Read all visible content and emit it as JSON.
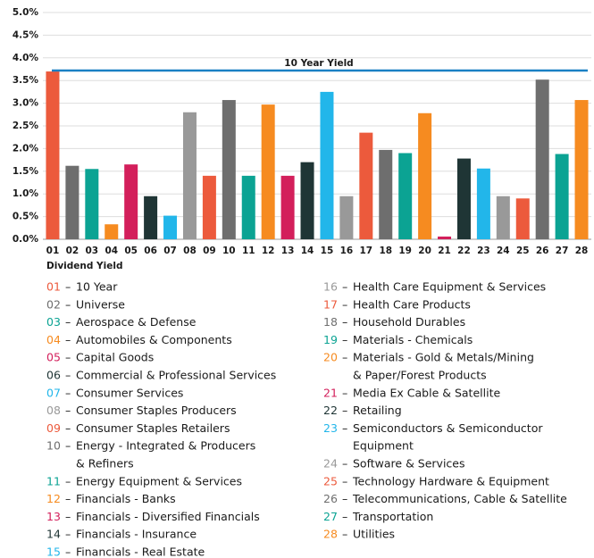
{
  "chart_data": {
    "type": "bar",
    "x_label": "Dividend Yield",
    "categories": [
      "01",
      "02",
      "03",
      "04",
      "05",
      "06",
      "07",
      "08",
      "09",
      "10",
      "11",
      "12",
      "13",
      "14",
      "15",
      "16",
      "17",
      "18",
      "19",
      "20",
      "21",
      "22",
      "23",
      "24",
      "25",
      "26",
      "27",
      "28"
    ],
    "values": [
      3.7,
      1.62,
      1.55,
      0.33,
      1.65,
      0.95,
      0.52,
      2.8,
      1.4,
      3.07,
      1.4,
      2.97,
      1.4,
      1.7,
      3.25,
      0.95,
      2.35,
      1.97,
      1.9,
      2.78,
      0.06,
      1.78,
      1.56,
      0.95,
      0.9,
      3.52,
      1.88,
      3.07
    ],
    "colors": [
      "#ec5a3c",
      "#6e6e6e",
      "#0ba393",
      "#f68b20",
      "#d31f5b",
      "#1f3535",
      "#22b6ea",
      "#999999",
      "#ec5a3c",
      "#6e6e6e",
      "#0ba393",
      "#f68b20",
      "#d31f5b",
      "#1f3535",
      "#22b6ea",
      "#999999",
      "#ec5a3c",
      "#6e6e6e",
      "#0ba393",
      "#f68b20",
      "#d31f5b",
      "#1f3535",
      "#22b6ea",
      "#999999",
      "#ec5a3c",
      "#6e6e6e",
      "#0ba393",
      "#f68b20"
    ],
    "reference_line": {
      "label": "10 Year Yield",
      "value": 3.72,
      "color": "#1a80c4"
    },
    "ylim": [
      0,
      5
    ],
    "yticks": [
      {
        "value": 0,
        "label": "0.0%"
      },
      {
        "value": 0.5,
        "label": "0.5%"
      },
      {
        "value": 1,
        "label": "1.0%"
      },
      {
        "value": 1.5,
        "label": "1.5%"
      },
      {
        "value": 2,
        "label": "2.0%"
      },
      {
        "value": 2.5,
        "label": "2.5%"
      },
      {
        "value": 3,
        "label": "3.0%"
      },
      {
        "value": 3.5,
        "label": "3.5%"
      },
      {
        "value": 4,
        "label": "4.0%"
      },
      {
        "value": 4.5,
        "label": "4.5%"
      },
      {
        "value": 5,
        "label": "5.0%"
      }
    ],
    "grid": true,
    "legend_separator": "–",
    "legend_labels": [
      [
        "10 Year"
      ],
      [
        "Universe"
      ],
      [
        "Aerospace & Defense"
      ],
      [
        "Automobiles & Components"
      ],
      [
        "Capital Goods"
      ],
      [
        "Commercial & Professional Services"
      ],
      [
        "Consumer Services"
      ],
      [
        "Consumer Staples Producers"
      ],
      [
        "Consumer Staples Retailers"
      ],
      [
        "Energy - Integrated & Producers",
        "& Refiners"
      ],
      [
        "Energy Equipment & Services"
      ],
      [
        "Financials - Banks"
      ],
      [
        "Financials - Diversified Financials"
      ],
      [
        "Financials - Insurance"
      ],
      [
        "Financials - Real Estate"
      ],
      [
        "Health Care Equipment & Services"
      ],
      [
        "Health Care Products"
      ],
      [
        "Household Durables"
      ],
      [
        "Materials - Chemicals"
      ],
      [
        "Materials - Gold & Metals/Mining",
        "& Paper/Forest Products"
      ],
      [
        "Media Ex Cable & Satellite"
      ],
      [
        "Retailing"
      ],
      [
        "Semiconductors & Semiconductor",
        "Equipment"
      ],
      [
        "Software & Services"
      ],
      [
        "Technology Hardware & Equipment"
      ],
      [
        "Telecommunications, Cable & Satellite"
      ],
      [
        "Transportation"
      ],
      [
        "Utilities"
      ]
    ]
  }
}
